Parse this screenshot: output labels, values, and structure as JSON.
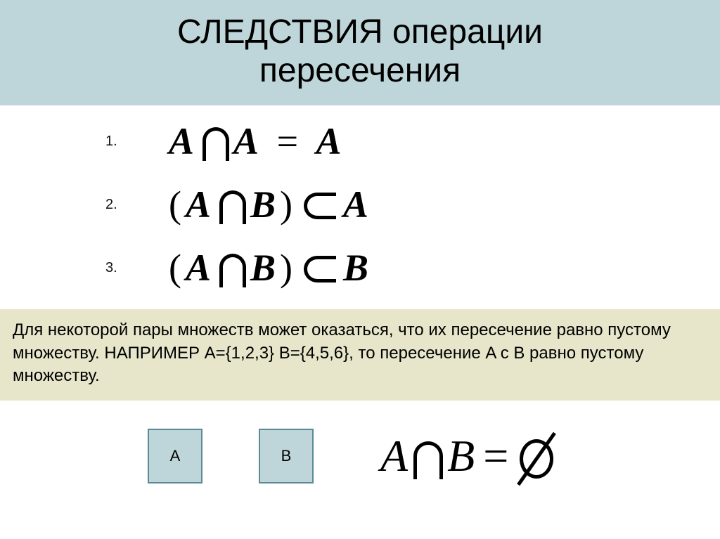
{
  "colors": {
    "title_bg": "#bed6d9",
    "note_bg": "#e7e6cb",
    "box_fill": "#bed6d9",
    "box_border": "#5a8a96",
    "text": "#000000"
  },
  "title": {
    "line1": "СЛЕДСТВИЯ операции",
    "line2": "пересечения"
  },
  "formulas": {
    "items": [
      {
        "num": "1.",
        "lhs_open": "",
        "A": "A",
        "B": "A",
        "lhs_close": "",
        "rel": "=",
        "rhs": "A"
      },
      {
        "num": "2.",
        "lhs_open": "(",
        "A": "A",
        "B": "B",
        "lhs_close": ")",
        "rel": "subset",
        "rhs": "A"
      },
      {
        "num": "3.",
        "lhs_open": "(",
        "A": "A",
        "B": "B",
        "lhs_close": ")",
        "rel": "subset",
        "rhs": "B"
      }
    ]
  },
  "note_text": "Для некоторой пары множеств может оказаться, что их пересечение равно пустому множеству. НАПРИМЕР  A={1,2,3} B={4,5,6}, то пересечение A с B равно пустому множеству.",
  "boxes": {
    "A": "A",
    "B": "B"
  },
  "bottom_formula": {
    "A": "A",
    "B": "B",
    "eq": "="
  }
}
